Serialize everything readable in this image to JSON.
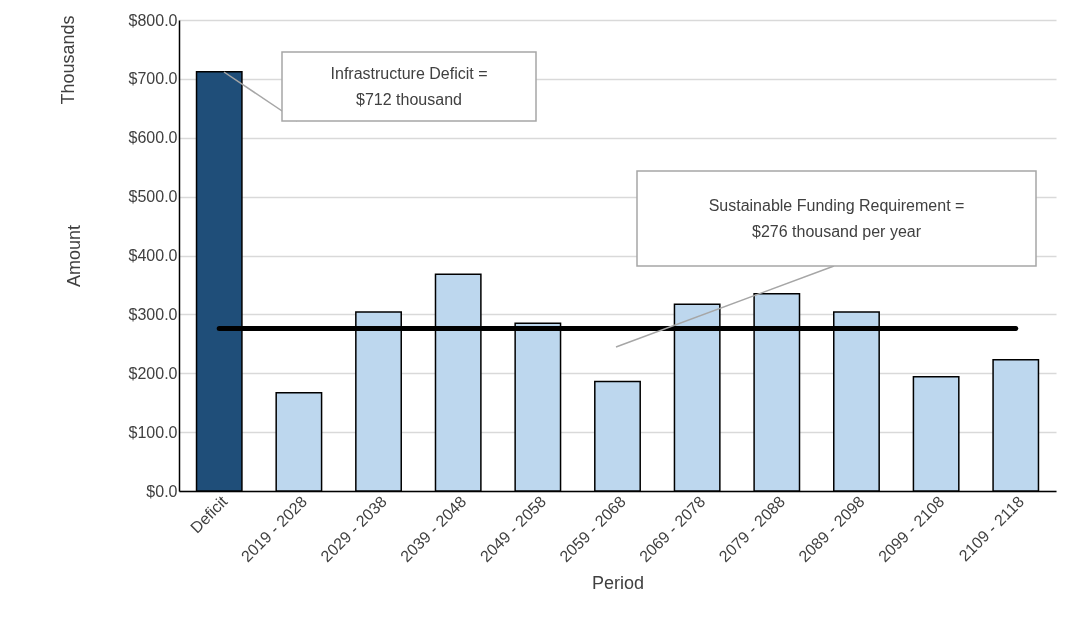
{
  "chart_data": {
    "type": "bar",
    "xlabel": "Period",
    "ylabel": "Amount",
    "categories": [
      "Deficit",
      "2019 - 2028",
      "2029 - 2038",
      "2039 - 2048",
      "2049 - 2058",
      "2059 - 2068",
      "2069 - 2078",
      "2079 - 2088",
      "2089 - 2098",
      "2099 - 2108",
      "2109 - 2118"
    ],
    "values": [
      712,
      167,
      304,
      368,
      285,
      186,
      317,
      335,
      304,
      194,
      223
    ],
    "colors": [
      "#1f4e79",
      "#bdd7ee",
      "#bdd7ee",
      "#bdd7ee",
      "#bdd7ee",
      "#bdd7ee",
      "#bdd7ee",
      "#bdd7ee",
      "#bdd7ee",
      "#bdd7ee",
      "#bdd7ee"
    ],
    "ylim": [
      0,
      800
    ],
    "yticks": [
      {
        "value": 0,
        "label": "$0.0"
      },
      {
        "value": 100,
        "label": "$100.0"
      },
      {
        "value": 200,
        "label": "$200.0"
      },
      {
        "value": 300,
        "label": "$300.0"
      },
      {
        "value": 400,
        "label": "$400.0"
      },
      {
        "value": 500,
        "label": "$500.0"
      },
      {
        "value": 600,
        "label": "$600.0"
      },
      {
        "value": 700,
        "label": "$700.0"
      },
      {
        "value": 800,
        "label": "$800.0"
      }
    ],
    "grid": "y",
    "ref_lines": [
      {
        "axis": "y",
        "value": 276,
        "color": "#000000"
      }
    ],
    "annotations": [
      "Thousands",
      "Infrastructure Deficit =\n$712 thousand",
      "Sustainable Funding Requirement =\n$276 thousand per year"
    ]
  }
}
